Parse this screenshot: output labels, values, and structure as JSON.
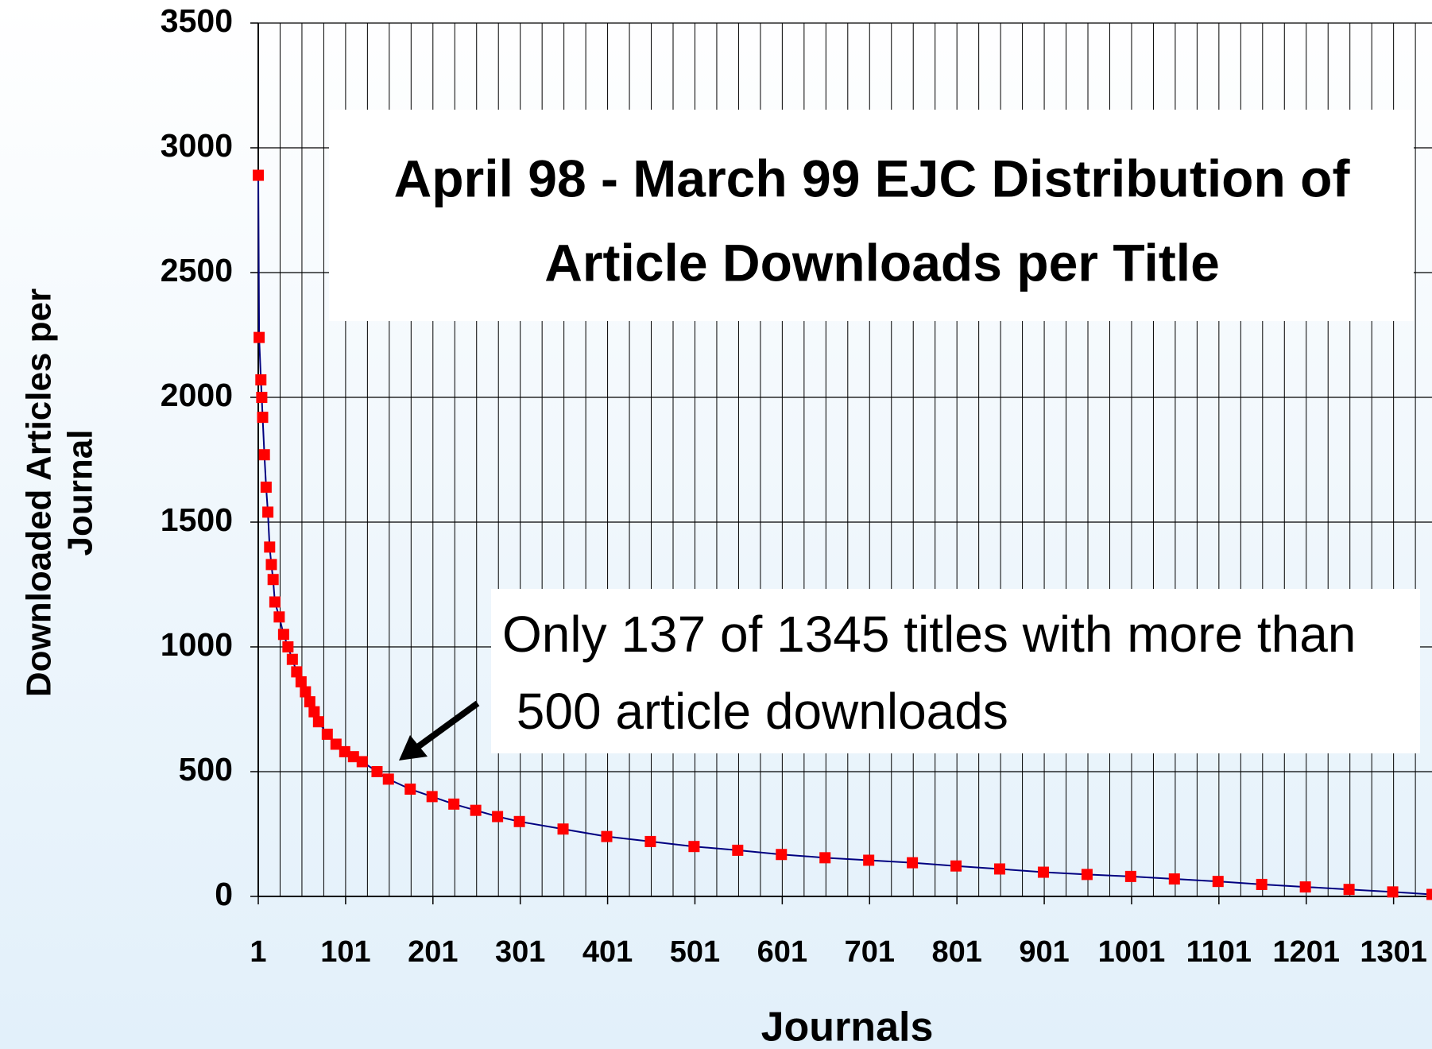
{
  "chart_data": {
    "type": "line",
    "title": [
      "April 98 - March 99 EJC Distribution of",
      "Article Downloads per Title"
    ],
    "xlabel": "Journals",
    "ylabel": [
      "Downloaded Articles per",
      "Journal"
    ],
    "annotation": [
      "Only 137 of 1345 titles with more than",
      " 500 article downloads"
    ],
    "x": [
      1,
      2,
      4,
      5,
      6,
      8,
      10,
      12,
      14,
      16,
      18,
      20,
      25,
      30,
      35,
      40,
      45,
      50,
      55,
      60,
      65,
      70,
      80,
      90,
      100,
      110,
      120,
      137,
      150,
      175,
      200,
      225,
      250,
      275,
      300,
      350,
      400,
      450,
      500,
      550,
      600,
      650,
      700,
      750,
      800,
      850,
      900,
      950,
      1000,
      1050,
      1100,
      1150,
      1200,
      1250,
      1300,
      1345
    ],
    "series": [
      {
        "color": "#ff0000",
        "line_color": "#000080",
        "values": [
          2890,
          2240,
          2070,
          2000,
          1920,
          1770,
          1640,
          1540,
          1400,
          1330,
          1270,
          1180,
          1120,
          1050,
          1000,
          950,
          900,
          860,
          820,
          780,
          740,
          700,
          650,
          610,
          580,
          560,
          540,
          500,
          470,
          430,
          400,
          370,
          345,
          320,
          300,
          270,
          240,
          220,
          200,
          185,
          168,
          155,
          145,
          135,
          122,
          110,
          97,
          88,
          80,
          70,
          60,
          48,
          38,
          28,
          18,
          8
        ]
      }
    ],
    "xlim": [
      1,
      1345
    ],
    "xticks": [
      1,
      101,
      201,
      301,
      401,
      501,
      601,
      701,
      801,
      901,
      1001,
      1101,
      1201,
      1301
    ],
    "xgrid_step": 25,
    "ylim": [
      0,
      3500
    ],
    "yticks": [
      0,
      500,
      1000,
      1500,
      2000,
      2500,
      3000,
      3500
    ],
    "grid": true
  }
}
